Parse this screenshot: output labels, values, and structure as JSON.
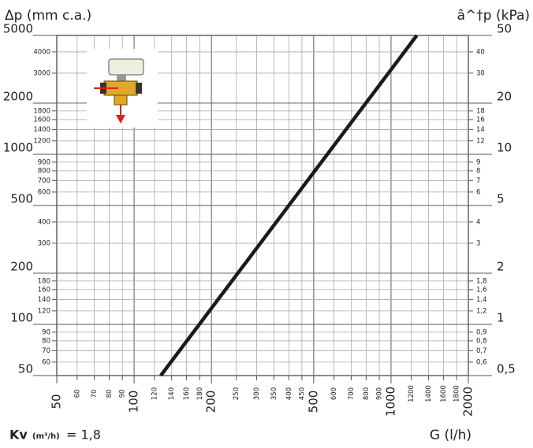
{
  "chart_data": {
    "type": "line",
    "title_left": "Δp (mm c.a.)",
    "title_right": "â^†p (kPa)",
    "x_label": "G (l/h)",
    "kv_label": "Kv",
    "kv_unit": "(m³/h)",
    "kv_value": "= 1,8",
    "log_x": true,
    "log_y": true,
    "grid": true,
    "x": [
      127,
      1260
    ],
    "series": [
      {
        "name": "Kv 1,8",
        "color": "#1a1a1a",
        "values": [
          50,
          5000
        ]
      }
    ],
    "xlim": [
      50,
      2000
    ],
    "xticks": [
      50,
      100,
      200,
      500,
      1000,
      2000
    ],
    "xticks_minor": [
      60,
      70,
      80,
      90,
      120,
      140,
      160,
      180,
      250,
      300,
      350,
      400,
      450,
      600,
      700,
      800,
      900,
      1200,
      1400,
      1600,
      1800
    ],
    "ylim": [
      50,
      5000
    ],
    "yticks": [
      50,
      100,
      200,
      500,
      1000,
      2000,
      5000
    ],
    "yticks_minor": [
      60,
      70,
      80,
      90,
      120,
      140,
      160,
      180,
      300,
      400,
      600,
      700,
      800,
      900,
      1200,
      1400,
      1600,
      1800,
      3000,
      4000
    ],
    "y2lim": [
      0.5,
      50
    ],
    "y2ticks": [
      {
        "value": 0.5,
        "label": "0,5"
      },
      1,
      2,
      5,
      10,
      20,
      50
    ],
    "y2ticks_minor": [
      {
        "value": 0.6,
        "label": "0,6"
      },
      {
        "value": 0.7,
        "label": "0,7"
      },
      {
        "value": 0.8,
        "label": "0,8"
      },
      {
        "value": 0.9,
        "label": "0,9"
      },
      {
        "value": 1.2,
        "label": "1,2"
      },
      {
        "value": 1.4,
        "label": "1,4"
      },
      {
        "value": 1.6,
        "label": "1,6"
      },
      {
        "value": 1.8,
        "label": "1,8"
      },
      3,
      4,
      6,
      7,
      8,
      9,
      12,
      14,
      16,
      18,
      30,
      40
    ]
  }
}
